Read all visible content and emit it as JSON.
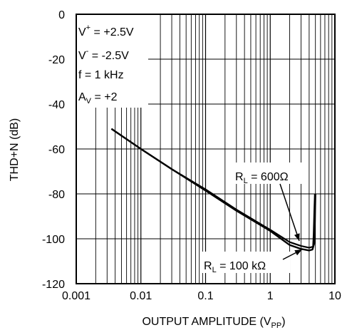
{
  "chart_data": {
    "type": "line",
    "title": "",
    "xlabel": {
      "main": "OUTPUT AMPLITUDE (V",
      "sub": "PP",
      "tail": ")"
    },
    "ylabel": "THD+N (dB)",
    "xscale": "log",
    "xlim": [
      0.001,
      10
    ],
    "ylim": [
      -120,
      0
    ],
    "x_ticks": [
      {
        "v": 0.001,
        "label": "0.001"
      },
      {
        "v": 0.01,
        "label": "0.01"
      },
      {
        "v": 0.1,
        "label": "0.1"
      },
      {
        "v": 1,
        "label": "1"
      },
      {
        "v": 10,
        "label": "10"
      }
    ],
    "y_ticks": [
      {
        "v": 0,
        "label": "0"
      },
      {
        "v": -20,
        "label": "-20"
      },
      {
        "v": -40,
        "label": "-40"
      },
      {
        "v": -60,
        "label": "-60"
      },
      {
        "v": -80,
        "label": "-80"
      },
      {
        "v": -100,
        "label": "-100"
      },
      {
        "v": -120,
        "label": "-120"
      }
    ],
    "grid": true,
    "conditions": [
      {
        "main": "V",
        "sup": "+",
        "tail": " = +2.5V"
      },
      {
        "main": "V",
        "sup": "-",
        "tail": " = -2.5V"
      },
      {
        "main": "f = 1 kHz"
      },
      {
        "main": "A",
        "sub": "V",
        "tail": " = +2"
      }
    ],
    "series": [
      {
        "label": {
          "main": "R",
          "sub": "L",
          "tail": " = 600Ω"
        },
        "x": [
          0.0035,
          0.01,
          0.03,
          0.1,
          0.3,
          1,
          2,
          3,
          4,
          4.6,
          4.7,
          4.8,
          4.9
        ],
        "y": [
          -51,
          -60,
          -69,
          -78,
          -87,
          -96,
          -101.5,
          -103.2,
          -104,
          -103.5,
          -98,
          -88,
          -80
        ]
      },
      {
        "label": {
          "main": "R",
          "sub": "L",
          "tail": " = 100 kΩ"
        },
        "x": [
          0.0035,
          0.01,
          0.03,
          0.1,
          0.3,
          1,
          2,
          3,
          4,
          4.5,
          4.8,
          4.9,
          5.0
        ],
        "y": [
          -51,
          -60,
          -69,
          -78.5,
          -87.5,
          -96.5,
          -102.8,
          -104.5,
          -105.2,
          -104.8,
          -102,
          -92,
          -80
        ]
      }
    ]
  }
}
